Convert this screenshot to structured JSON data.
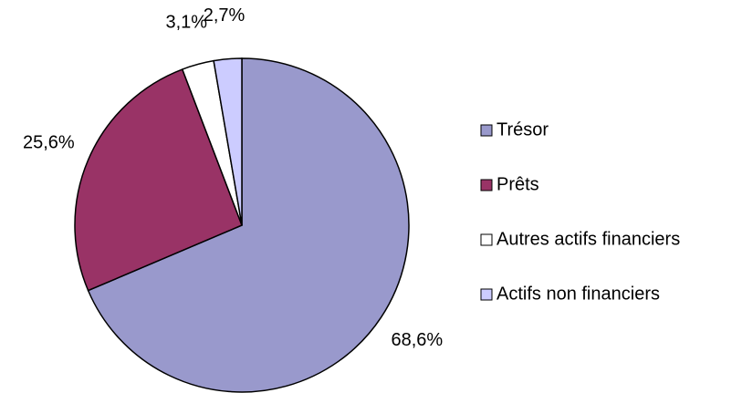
{
  "chart_data": {
    "type": "pie",
    "categories": [
      "Trésor",
      "Prêts",
      "Autres actifs financiers",
      "Actifs non financiers"
    ],
    "values": [
      68.6,
      25.6,
      3.1,
      2.7
    ],
    "value_labels": [
      "68,6%",
      "25,6%",
      "3,1%",
      "2,7%"
    ],
    "colors": [
      "#9999cc",
      "#993366",
      "#ffffff",
      "#ccccff"
    ],
    "legend": "right"
  }
}
